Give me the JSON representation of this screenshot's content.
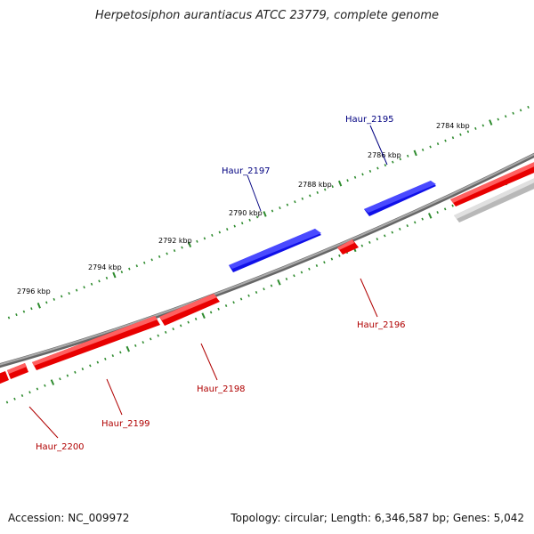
{
  "title": "Herpetosiphon aurantiacus ATCC 23779, complete genome",
  "footer": {
    "accession": "Accession: NC_009972",
    "summary": "Topology: circular; Length: 6,346,587 bp; Genes: 5,042"
  },
  "colors": {
    "forward_gene": "#0000ff",
    "reverse_gene": "#ff0000",
    "other_feature": "#c0c0c0",
    "backbone": "#888888",
    "ticks": "#2e8b2e",
    "forward_label": "#000080",
    "reverse_label": "#b00000"
  },
  "ticks": [
    {
      "label": "2784 kbp"
    },
    {
      "label": "2786 kbp"
    },
    {
      "label": "2788 kbp"
    },
    {
      "label": "2790 kbp"
    },
    {
      "label": "2792 kbp"
    },
    {
      "label": "2794 kbp"
    },
    {
      "label": "2796 kbp"
    }
  ],
  "genes": [
    {
      "name": "Haur_2195",
      "strand": "forward"
    },
    {
      "name": "Haur_2196",
      "strand": "reverse"
    },
    {
      "name": "Haur_2197",
      "strand": "forward"
    },
    {
      "name": "Haur_2198",
      "strand": "reverse"
    },
    {
      "name": "Haur_2199",
      "strand": "reverse"
    },
    {
      "name": "Haur_2200",
      "strand": "reverse"
    }
  ]
}
